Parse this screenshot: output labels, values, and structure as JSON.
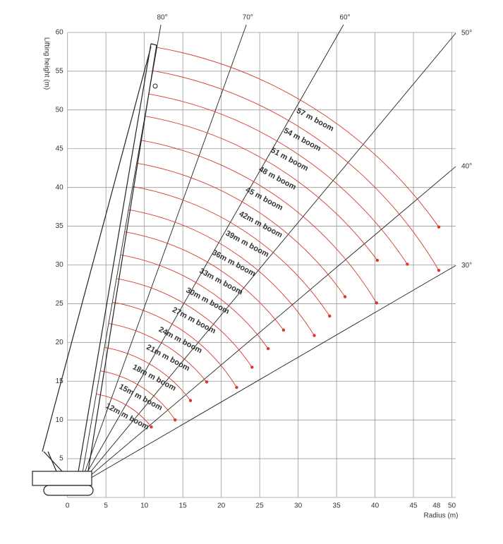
{
  "chart_data": {
    "type": "range",
    "x_label": "Radius (m)",
    "y_label": "Lifting height (m)",
    "xlim": [
      -3,
      50.5
    ],
    "ylim": [
      0,
      60
    ],
    "xticks": [
      0,
      5,
      10,
      15,
      20,
      25,
      30,
      35,
      40,
      45,
      48,
      50
    ],
    "yticks": [
      5,
      10,
      15,
      20,
      25,
      30,
      35,
      40,
      45,
      50,
      55,
      60
    ],
    "grid": true,
    "arc_color": "#d9382c",
    "angles": [
      {
        "value": 80,
        "label": "80°"
      },
      {
        "value": 70,
        "label": "70°"
      },
      {
        "value": 60,
        "label": "60°"
      },
      {
        "value": 50,
        "label": "50°"
      },
      {
        "value": 40,
        "label": "40°"
      },
      {
        "value": 30,
        "label": "30°"
      }
    ],
    "booms": [
      {
        "name": "57 m boom",
        "x": 48.3,
        "y": 34.9
      },
      {
        "name": "54 m boom",
        "x": 48.3,
        "y": 29.3
      },
      {
        "name": "51 m boom",
        "x": 44.2,
        "y": 30.1
      },
      {
        "name": "48 m boom",
        "x": 40.3,
        "y": 30.6
      },
      {
        "name": "45 m boom",
        "x": 40.2,
        "y": 25.1
      },
      {
        "name": "42m m boom",
        "x": 36.1,
        "y": 25.9
      },
      {
        "name": "39m m boom",
        "x": 34.1,
        "y": 23.4
      },
      {
        "name": "36m m boom",
        "x": 32.1,
        "y": 20.9
      },
      {
        "name": "33m m boom",
        "x": 28.1,
        "y": 21.6
      },
      {
        "name": "30m m boom",
        "x": 26.1,
        "y": 19.2
      },
      {
        "name": "27m m boom",
        "x": 24.0,
        "y": 16.8
      },
      {
        "name": "24m m boom",
        "x": 22.0,
        "y": 14.2
      },
      {
        "name": "21m m boom",
        "x": 18.1,
        "y": 14.9
      },
      {
        "name": "18m m boom",
        "x": 16.0,
        "y": 12.5
      },
      {
        "name": "15m m boom",
        "x": 14.0,
        "y": 10.0
      },
      {
        "name": "12m m boom",
        "x": 10.9,
        "y": 9.1
      }
    ]
  }
}
